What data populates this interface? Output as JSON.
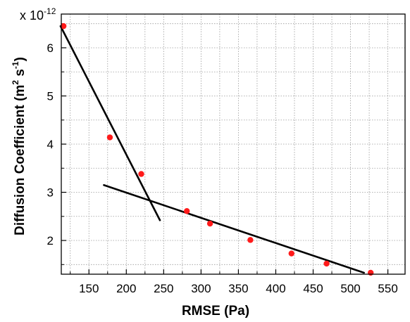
{
  "chart_data": {
    "type": "scatter",
    "title": "",
    "xlabel": "RMSE (Pa)",
    "ylabel_parts": [
      "Diffusion Coefficient (m",
      "2",
      " s",
      "-1",
      ")"
    ],
    "y_multiplier_base": "x 10",
    "y_multiplier_exponent": "-12",
    "xlim": [
      113,
      573
    ],
    "ylim": [
      1.3,
      6.7
    ],
    "x_ticks": [
      150,
      200,
      250,
      300,
      350,
      400,
      450,
      500,
      550
    ],
    "x_tick_labels": [
      "150",
      "200",
      "250",
      "300",
      "350",
      "400",
      "450",
      "500",
      "550"
    ],
    "x_minor_ticks": [
      125,
      175,
      225,
      275,
      325,
      375,
      425,
      475,
      525
    ],
    "y_ticks": [
      2,
      3,
      4,
      5,
      6
    ],
    "y_tick_labels": [
      "2",
      "3",
      "4",
      "5",
      "6"
    ],
    "y_minor_ticks": [
      1.5,
      2.5,
      3.5,
      4.5,
      5.5,
      6.5
    ],
    "grid": true,
    "legend": "none",
    "points": [
      {
        "x": 116,
        "y": 6.45
      },
      {
        "x": 178,
        "y": 4.14
      },
      {
        "x": 220,
        "y": 3.38
      },
      {
        "x": 281,
        "y": 2.61
      },
      {
        "x": 312,
        "y": 2.35
      },
      {
        "x": 366,
        "y": 2.01
      },
      {
        "x": 421,
        "y": 1.73
      },
      {
        "x": 468,
        "y": 1.52
      },
      {
        "x": 527,
        "y": 1.33
      }
    ],
    "fit_lines": [
      {
        "x": [
          112,
          245
        ],
        "y": [
          6.45,
          2.42
        ]
      },
      {
        "x": [
          170,
          518
        ],
        "y": [
          3.15,
          1.33
        ]
      }
    ],
    "colors": {
      "points": "#ff1a1a",
      "lines": "#000000",
      "grid": "#9a9a9a",
      "axes": "#000000"
    }
  }
}
